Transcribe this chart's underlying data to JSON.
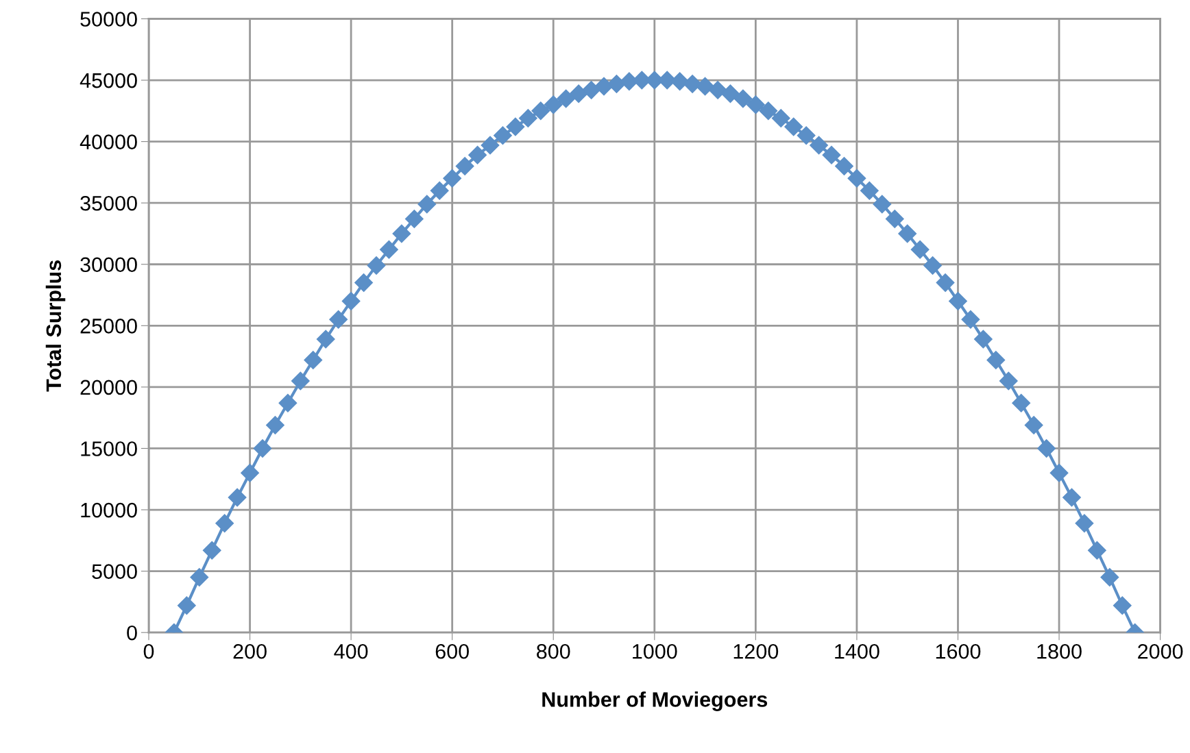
{
  "chart_data": {
    "type": "line",
    "xlabel": "Number of Moviegoers",
    "ylabel": "Total Surplus",
    "x": [
      50,
      75,
      100,
      125,
      150,
      175,
      200,
      225,
      250,
      275,
      300,
      325,
      350,
      375,
      400,
      425,
      450,
      475,
      500,
      525,
      550,
      575,
      600,
      625,
      650,
      675,
      700,
      725,
      750,
      775,
      800,
      825,
      850,
      875,
      900,
      925,
      950,
      975,
      1000,
      1025,
      1050,
      1075,
      1100,
      1125,
      1150,
      1175,
      1200,
      1225,
      1250,
      1275,
      1300,
      1325,
      1350,
      1375,
      1400,
      1425,
      1450,
      1475,
      1500,
      1525,
      1550,
      1575,
      1600,
      1625,
      1650,
      1675,
      1700,
      1725,
      1750,
      1775,
      1800,
      1825,
      1850,
      1875,
      1900,
      1925,
      1950
    ],
    "series": [
      {
        "color": "#5b8fc7",
        "values": [
          0,
          2200,
          4500,
          6700,
          8900,
          11000,
          13000,
          15000,
          16900,
          18700,
          20500,
          22200,
          23900,
          25500,
          27000,
          28500,
          29900,
          31200,
          32500,
          33700,
          34900,
          36000,
          37000,
          38000,
          38900,
          39700,
          40500,
          41200,
          41900,
          42500,
          43000,
          43500,
          43900,
          44200,
          44500,
          44700,
          44900,
          45000,
          45000,
          45000,
          44900,
          44700,
          44500,
          44200,
          43900,
          43500,
          43000,
          42500,
          41900,
          41200,
          40500,
          39700,
          38900,
          38000,
          37000,
          36000,
          34900,
          33700,
          32500,
          31200,
          29900,
          28500,
          27000,
          25500,
          23900,
          22200,
          20500,
          18700,
          16900,
          15000,
          13000,
          11000,
          8900,
          6700,
          4500,
          2200,
          0
        ]
      }
    ],
    "xlim": [
      0,
      2000
    ],
    "xticks": [
      0,
      200,
      400,
      600,
      800,
      1000,
      1200,
      1400,
      1600,
      1800,
      2000
    ],
    "ylim": [
      0,
      50000
    ],
    "yticks": [
      0,
      5000,
      10000,
      15000,
      20000,
      25000,
      30000,
      35000,
      40000,
      45000,
      50000
    ],
    "grid": true,
    "marker": "diamond",
    "line_style": "solid"
  }
}
